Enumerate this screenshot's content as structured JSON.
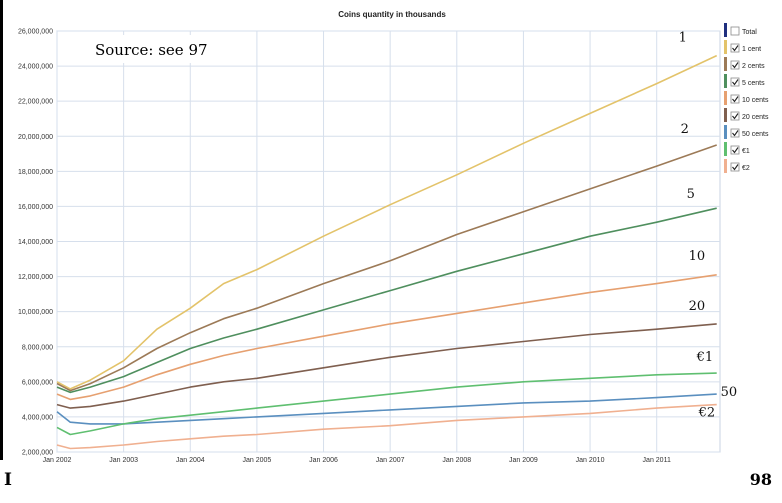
{
  "chart_data": {
    "type": "line",
    "title": "Coins quantity in thousands",
    "xlabel": "",
    "ylabel": "",
    "x_ticks": [
      "Jan 2002",
      "Jan 2003",
      "Jan 2004",
      "Jan 2005",
      "Jan 2006",
      "Jan 2007",
      "Jan 2008",
      "Jan 2009",
      "Jan 2010",
      "Jan 2011"
    ],
    "y_ticks": [
      "2,000,000",
      "4,000,000",
      "6,000,000",
      "8,000,000",
      "10,000,000",
      "12,000,000",
      "14,000,000",
      "16,000,000",
      "18,000,000",
      "20,000,000",
      "22,000,000",
      "24,000,000",
      "26,000,000"
    ],
    "ylim": [
      2000000,
      26000000
    ],
    "xlim": [
      2002.0,
      2011.95
    ],
    "grid": true,
    "legend_position": "right",
    "series": [
      {
        "name": "Total",
        "checked": false,
        "color": "#1f2f7f",
        "x": [],
        "y": []
      },
      {
        "name": "1 cent",
        "checked": true,
        "color": "#e3c36a",
        "end_label": "1",
        "x": [
          2002.0,
          2002.2,
          2002.5,
          2003.0,
          2003.5,
          2004.0,
          2004.5,
          2005.0,
          2006.0,
          2007.0,
          2008.0,
          2009.0,
          2010.0,
          2011.0,
          2011.9
        ],
        "y": [
          6000000,
          5600000,
          6100000,
          7200000,
          9000000,
          10200000,
          11600000,
          12400000,
          14300000,
          16100000,
          17800000,
          19600000,
          21300000,
          23000000,
          24600000
        ]
      },
      {
        "name": "2 cents",
        "checked": true,
        "color": "#9c7a57",
        "end_label": "2",
        "x": [
          2002.0,
          2002.2,
          2002.5,
          2003.0,
          2003.5,
          2004.0,
          2004.5,
          2005.0,
          2006.0,
          2007.0,
          2008.0,
          2009.0,
          2010.0,
          2011.0,
          2011.9
        ],
        "y": [
          5900000,
          5500000,
          5900000,
          6800000,
          7900000,
          8800000,
          9600000,
          10200000,
          11600000,
          12900000,
          14400000,
          15700000,
          17000000,
          18300000,
          19500000
        ]
      },
      {
        "name": "5 cents",
        "checked": true,
        "color": "#4f8f5e",
        "end_label": "5",
        "x": [
          2002.0,
          2002.2,
          2002.5,
          2003.0,
          2003.5,
          2004.0,
          2004.5,
          2005.0,
          2006.0,
          2007.0,
          2008.0,
          2009.0,
          2010.0,
          2011.0,
          2011.9
        ],
        "y": [
          5700000,
          5400000,
          5700000,
          6300000,
          7100000,
          7900000,
          8500000,
          9000000,
          10100000,
          11200000,
          12300000,
          13300000,
          14300000,
          15100000,
          15900000
        ]
      },
      {
        "name": "10 cents",
        "checked": true,
        "color": "#e6a070",
        "end_label": "10",
        "x": [
          2002.0,
          2002.2,
          2002.5,
          2003.0,
          2003.5,
          2004.0,
          2004.5,
          2005.0,
          2006.0,
          2007.0,
          2008.0,
          2009.0,
          2010.0,
          2011.0,
          2011.9
        ],
        "y": [
          5300000,
          5000000,
          5200000,
          5700000,
          6400000,
          7000000,
          7500000,
          7900000,
          8600000,
          9300000,
          9900000,
          10500000,
          11100000,
          11600000,
          12100000
        ]
      },
      {
        "name": "20 cents",
        "checked": true,
        "color": "#7f5f4f",
        "end_label": "20",
        "x": [
          2002.0,
          2002.2,
          2002.5,
          2003.0,
          2003.5,
          2004.0,
          2004.5,
          2005.0,
          2006.0,
          2007.0,
          2008.0,
          2009.0,
          2010.0,
          2011.0,
          2011.9
        ],
        "y": [
          4700000,
          4500000,
          4600000,
          4900000,
          5300000,
          5700000,
          6000000,
          6200000,
          6800000,
          7400000,
          7900000,
          8300000,
          8700000,
          9000000,
          9300000
        ]
      },
      {
        "name": "50 cents",
        "checked": true,
        "color": "#5a8fbf",
        "end_label": "50",
        "x": [
          2002.0,
          2002.2,
          2002.5,
          2003.0,
          2003.5,
          2004.0,
          2004.5,
          2005.0,
          2006.0,
          2007.0,
          2008.0,
          2009.0,
          2010.0,
          2011.0,
          2011.9
        ],
        "y": [
          4300000,
          3700000,
          3600000,
          3600000,
          3700000,
          3800000,
          3900000,
          4000000,
          4200000,
          4400000,
          4600000,
          4800000,
          4900000,
          5100000,
          5300000
        ]
      },
      {
        "name": "€1",
        "checked": true,
        "color": "#5fbf70",
        "end_label": "€1",
        "x": [
          2002.0,
          2002.2,
          2002.5,
          2003.0,
          2003.5,
          2004.0,
          2004.5,
          2005.0,
          2006.0,
          2007.0,
          2008.0,
          2009.0,
          2010.0,
          2011.0,
          2011.9
        ],
        "y": [
          3400000,
          3000000,
          3200000,
          3600000,
          3900000,
          4100000,
          4300000,
          4500000,
          4900000,
          5300000,
          5700000,
          6000000,
          6200000,
          6400000,
          6500000
        ]
      },
      {
        "name": "€2",
        "checked": true,
        "color": "#f0b090",
        "end_label": "€2",
        "x": [
          2002.0,
          2002.2,
          2002.5,
          2003.0,
          2003.5,
          2004.0,
          2004.5,
          2005.0,
          2006.0,
          2007.0,
          2008.0,
          2009.0,
          2010.0,
          2011.0,
          2011.9
        ],
        "y": [
          2400000,
          2200000,
          2250000,
          2400000,
          2600000,
          2750000,
          2900000,
          3000000,
          3300000,
          3500000,
          3800000,
          4000000,
          4200000,
          4500000,
          4700000
        ]
      }
    ]
  },
  "annotations": {
    "source": "Source: see 97"
  },
  "footer": {
    "left": "I",
    "right": "98"
  }
}
